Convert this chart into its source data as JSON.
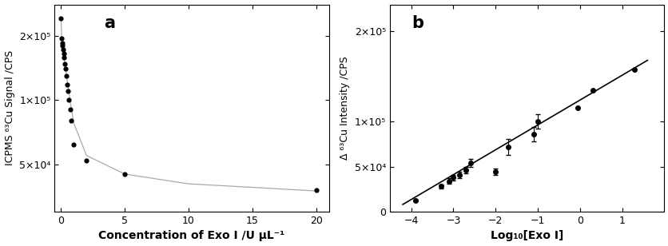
{
  "panel_a": {
    "label": "a",
    "scatter_x": [
      0.0,
      0.05,
      0.1,
      0.1,
      0.15,
      0.2,
      0.25,
      0.3,
      0.35,
      0.4,
      0.5,
      0.55,
      0.6,
      0.7,
      0.8,
      1.0,
      2.0,
      5.0,
      20.0
    ],
    "scatter_y": [
      240000,
      195000,
      185000,
      180000,
      172000,
      165000,
      158000,
      148000,
      140000,
      130000,
      118000,
      110000,
      100000,
      90000,
      80000,
      62000,
      52000,
      45000,
      38000
    ],
    "line_x": [
      0.0,
      0.05,
      0.1,
      0.2,
      0.3,
      0.4,
      0.5,
      0.7,
      1.0,
      2.0,
      5.0,
      10.0,
      15.0,
      20.0
    ],
    "line_y": [
      240000,
      200000,
      182000,
      162000,
      148000,
      134000,
      122000,
      100000,
      78000,
      55000,
      45000,
      40500,
      39000,
      37500
    ],
    "xlabel": "Concentration of Exo I /U μL⁻¹",
    "ylabel": "ICPMS ⁶³Cu Signal /CPS",
    "xlim": [
      -0.5,
      21
    ],
    "ylim": [
      30000,
      280000
    ],
    "yticks": [
      50000,
      100000,
      200000
    ],
    "ytick_labels": [
      "5×10⁴",
      "1×10⁵",
      "2×10⁵"
    ],
    "xticks": [
      0,
      5,
      10,
      15,
      20
    ]
  },
  "panel_b": {
    "label": "b",
    "scatter_x": [
      -3.9,
      -3.3,
      -3.1,
      -3.0,
      -2.85,
      -2.7,
      -2.6,
      -2.0,
      -1.7,
      -1.1,
      -1.0,
      -0.05,
      0.3,
      1.3
    ],
    "scatter_y": [
      12000,
      28000,
      34000,
      38000,
      41000,
      46000,
      54000,
      44000,
      72000,
      86000,
      100000,
      115000,
      135000,
      158000
    ],
    "yerr": [
      0,
      2000,
      3000,
      3000,
      3500,
      3500,
      4500,
      3500,
      9000,
      8000,
      8000,
      0,
      0,
      0
    ],
    "line_x": [
      -4.2,
      1.6
    ],
    "line_y": [
      8000,
      168000
    ],
    "xlabel": "Log₁₀[Exo I]",
    "ylabel": "Δ ⁶³Cu Intensity /CPS",
    "xlim": [
      -4.5,
      2.0
    ],
    "ylim": [
      0,
      230000
    ],
    "yticks": [
      0,
      50000,
      100000,
      200000
    ],
    "ytick_labels": [
      "0",
      "5×10⁴",
      "1×10⁵",
      "2×10⁵"
    ],
    "xticks": [
      -4,
      -3,
      -2,
      -1,
      0,
      1
    ]
  },
  "figure_bgcolor": "#ffffff",
  "line_color_a": "#aaaaaa",
  "line_color_b": "#000000",
  "scatter_color": "#000000",
  "font_size": 9,
  "xlabel_fontsize": 10,
  "ylabel_fontsize": 9
}
